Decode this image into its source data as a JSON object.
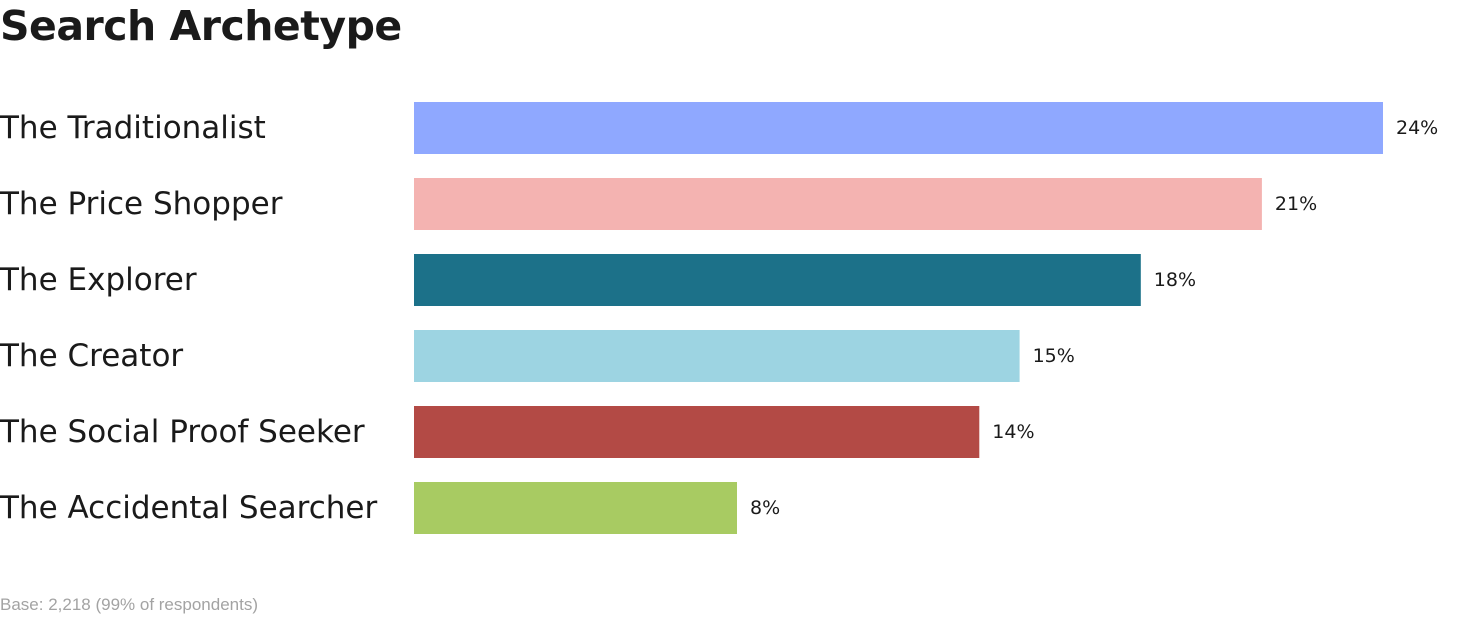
{
  "chart_data": {
    "type": "bar",
    "orientation": "horizontal",
    "title": "Search Archetype",
    "categories": [
      "The Traditionalist",
      "The Price Shopper",
      "The Explorer",
      "The Creator",
      "The Social Proof Seeker",
      "The Accidental Searcher"
    ],
    "values": [
      24,
      21,
      18,
      15,
      14,
      8
    ],
    "value_labels": [
      "24%",
      "21%",
      "18%",
      "15%",
      "14%",
      "8%"
    ],
    "colors": [
      "#8fa8ff",
      "#f4b3b1",
      "#1c7189",
      "#9dd4e2",
      "#b34a45",
      "#a8cb62"
    ],
    "unit": "%",
    "xlim": [
      0,
      24
    ],
    "grid": false,
    "legend": "none"
  },
  "footnote": "Base: 2,218 (99% of respondents)"
}
